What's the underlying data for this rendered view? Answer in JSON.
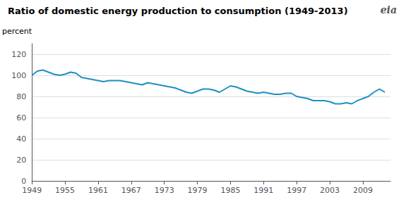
{
  "chart_data": {
    "type": "line",
    "title": "Ratio of domestic energy production to consumption (1949-2013)",
    "ylabel": "percent",
    "annotations": [
      "eia"
    ],
    "color": "#1f8fc2",
    "x": [
      1949,
      1950,
      1951,
      1952,
      1953,
      1954,
      1955,
      1956,
      1957,
      1958,
      1959,
      1960,
      1961,
      1962,
      1963,
      1964,
      1965,
      1966,
      1967,
      1968,
      1969,
      1970,
      1971,
      1972,
      1973,
      1974,
      1975,
      1976,
      1977,
      1978,
      1979,
      1980,
      1981,
      1982,
      1983,
      1984,
      1985,
      1986,
      1987,
      1988,
      1989,
      1990,
      1991,
      1992,
      1993,
      1994,
      1995,
      1996,
      1997,
      1998,
      1999,
      2000,
      2001,
      2002,
      2003,
      2004,
      2005,
      2006,
      2007,
      2008,
      2009,
      2010,
      2011,
      2012,
      2013
    ],
    "values": [
      100,
      104,
      105,
      103,
      101,
      100,
      101,
      103,
      102,
      98,
      97,
      96,
      95,
      94,
      95,
      95,
      95,
      94,
      93,
      92,
      91,
      93,
      92,
      91,
      90,
      89,
      88,
      86,
      84,
      83,
      85,
      87,
      87,
      86,
      84,
      87,
      90,
      89,
      87,
      85,
      84,
      83,
      84,
      83,
      82,
      82,
      83,
      83,
      80,
      79,
      78,
      76,
      76,
      76,
      75,
      73,
      73,
      74,
      73,
      76,
      78,
      80,
      84,
      87,
      84
    ],
    "xlim": [
      1949,
      2014
    ],
    "xticks": [
      1949,
      1955,
      1961,
      1967,
      1973,
      1979,
      1985,
      1991,
      1997,
      2003,
      2009
    ],
    "ylim": [
      0,
      130
    ],
    "yticks": [
      0,
      20,
      40,
      60,
      80,
      100,
      120
    ],
    "grid": true
  }
}
